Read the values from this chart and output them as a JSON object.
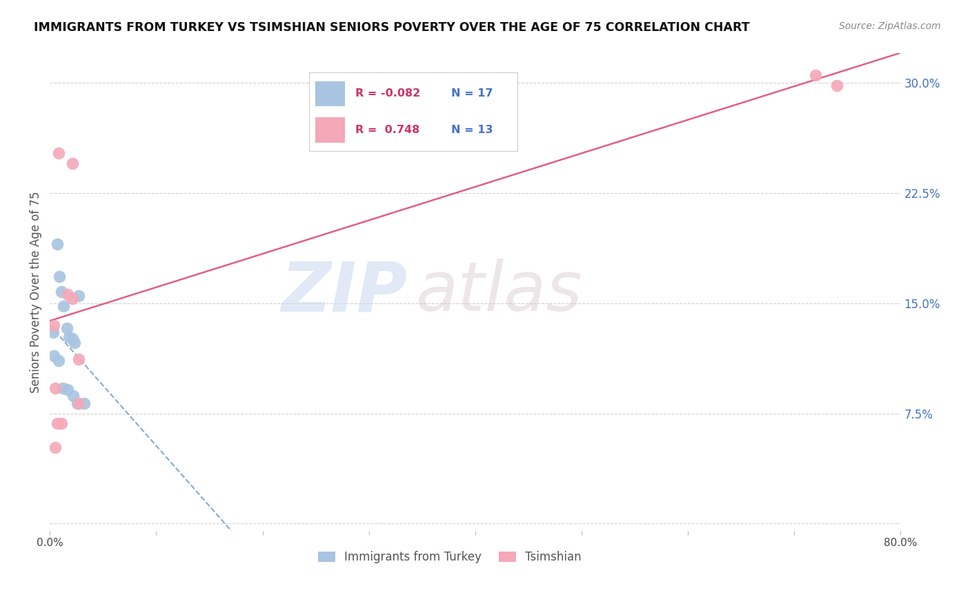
{
  "title": "IMMIGRANTS FROM TURKEY VS TSIMSHIAN SENIORS POVERTY OVER THE AGE OF 75 CORRELATION CHART",
  "source": "Source: ZipAtlas.com",
  "ylabel": "Seniors Poverty Over the Age of 75",
  "xlim": [
    0.0,
    0.8
  ],
  "ylim": [
    -0.005,
    0.32
  ],
  "xticks": [
    0.0,
    0.1,
    0.2,
    0.3,
    0.4,
    0.5,
    0.6,
    0.7,
    0.8
  ],
  "xticklabels": [
    "0.0%",
    "",
    "",
    "",
    "",
    "",
    "",
    "",
    "80.0%"
  ],
  "yticks_right": [
    0.0,
    0.075,
    0.15,
    0.225,
    0.3
  ],
  "ytick_right_labels": [
    "",
    "7.5%",
    "15.0%",
    "22.5%",
    "30.0%"
  ],
  "ytick_right_color": "#4472c4",
  "grid_color": "#d0d0d0",
  "watermark_zip": "ZIP",
  "watermark_atlas": "atlas",
  "legend_turkey_r": "-0.082",
  "legend_turkey_n": "17",
  "legend_tsimshian_r": "0.748",
  "legend_tsimshian_n": "13",
  "turkey_scatter_x": [
    0.003,
    0.007,
    0.009,
    0.011,
    0.013,
    0.016,
    0.018,
    0.021,
    0.023,
    0.027,
    0.004,
    0.008,
    0.012,
    0.017,
    0.022,
    0.026,
    0.032
  ],
  "turkey_scatter_y": [
    0.13,
    0.19,
    0.168,
    0.158,
    0.148,
    0.133,
    0.127,
    0.126,
    0.123,
    0.155,
    0.114,
    0.111,
    0.092,
    0.091,
    0.087,
    0.082,
    0.082
  ],
  "tsimshian_scatter_x": [
    0.004,
    0.005,
    0.007,
    0.011,
    0.017,
    0.021,
    0.027,
    0.027,
    0.72,
    0.74,
    0.021,
    0.005,
    0.008
  ],
  "tsimshian_scatter_y": [
    0.135,
    0.092,
    0.068,
    0.068,
    0.156,
    0.153,
    0.112,
    0.082,
    0.305,
    0.298,
    0.245,
    0.052,
    0.252
  ],
  "turkey_color": "#a8c4e0",
  "tsimshian_color": "#f4a8b8",
  "turkey_line_color": "#5b8ec4",
  "tsimshian_line_color": "#e06080",
  "background_color": "#ffffff",
  "turkey_line_intercept": 0.135,
  "turkey_line_slope": -0.82,
  "tsimshian_line_intercept": 0.138,
  "tsimshian_line_slope": 0.228
}
